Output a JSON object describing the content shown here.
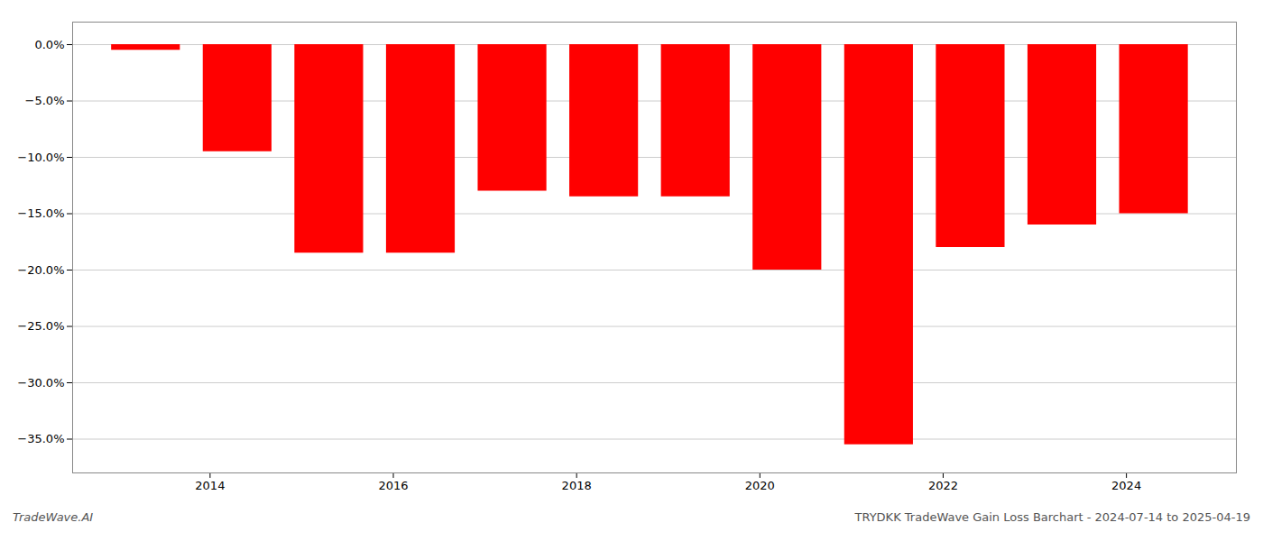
{
  "chart_data": {
    "type": "bar",
    "x": [
      2013.3,
      2014.3,
      2015.3,
      2016.3,
      2017.3,
      2018.3,
      2019.3,
      2020.3,
      2021.3,
      2022.3,
      2023.3,
      2024.3
    ],
    "values": [
      -0.5,
      -9.5,
      -18.5,
      -18.5,
      -13.0,
      -13.5,
      -13.5,
      -20.0,
      -35.5,
      -18.0,
      -16.0,
      -15.0
    ],
    "color": "#ff0000",
    "xlim": [
      2012.5,
      2025.2
    ],
    "xticks": [
      2014,
      2016,
      2018,
      2020,
      2022,
      2024
    ],
    "ylim": [
      -38,
      2
    ],
    "yticks": [
      {
        "value": 0.0,
        "label": "0.0%"
      },
      {
        "value": -5.0,
        "label": "−5.0%"
      },
      {
        "value": -10.0,
        "label": "−10.0%"
      },
      {
        "value": -15.0,
        "label": "−15.0%"
      },
      {
        "value": -20.0,
        "label": "−20.0%"
      },
      {
        "value": -25.0,
        "label": "−25.0%"
      },
      {
        "value": -30.0,
        "label": "−30.0%"
      },
      {
        "value": -35.0,
        "label": "−35.0%"
      }
    ],
    "grid": true,
    "annotations": [
      "TradeWave.AI",
      "TRYDKK TradeWave Gain Loss Barchart - 2024-07-14 to 2025-04-19"
    ]
  }
}
